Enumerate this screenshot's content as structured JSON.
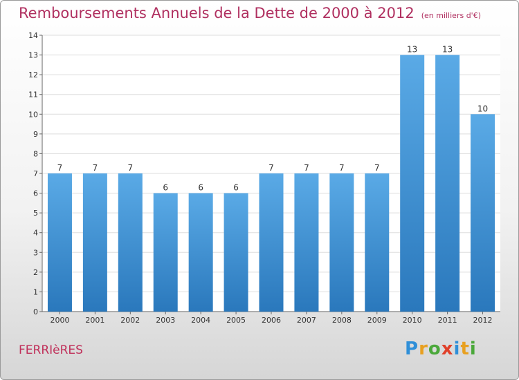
{
  "title": "Remboursements Annuels de la Dette de 2000 à 2012",
  "unit_note": "(en milliers d'€)",
  "commune": "FERRIèRES",
  "brand": {
    "letters": [
      "P",
      "r",
      "o",
      "x",
      "i",
      "t",
      "i"
    ],
    "colors": [
      "#2f8fd8",
      "#e8a020",
      "#4aa83a",
      "#e0402a",
      "#2f8fd8",
      "#e8a020",
      "#4aa83a"
    ]
  },
  "colors": {
    "bar_top": "#5aaae6",
    "bar_bottom": "#2a78bc",
    "title": "#b03060"
  },
  "chart_data": {
    "type": "bar",
    "categories": [
      "2000",
      "2001",
      "2002",
      "2003",
      "2004",
      "2005",
      "2006",
      "2007",
      "2008",
      "2009",
      "2010",
      "2011",
      "2012"
    ],
    "values": [
      7,
      7,
      7,
      6,
      6,
      6,
      7,
      7,
      7,
      7,
      13,
      13,
      10
    ],
    "data_labels": [
      "7",
      "7",
      "7",
      "6",
      "6",
      "6",
      "7",
      "7",
      "7",
      "7",
      "13",
      "13",
      "10"
    ],
    "yticks": [
      "0",
      "1",
      "2",
      "3",
      "4",
      "5",
      "6",
      "7",
      "8",
      "9",
      "10",
      "11",
      "12",
      "13",
      "14"
    ],
    "ylim": [
      0,
      14
    ],
    "grid": true
  }
}
